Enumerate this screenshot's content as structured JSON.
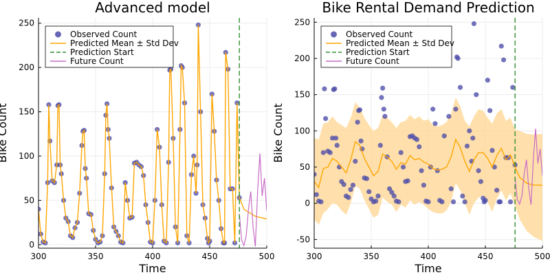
{
  "colors": {
    "observed": "#4b4ba8",
    "predicted": "#ffa500",
    "band": "#ffd690",
    "prediction_start": "#2f8f2f",
    "future": "#c76bc7",
    "grid": "#ececec",
    "axis": "#000000"
  },
  "legend": {
    "observed": "Observed Count",
    "predicted": "Predicted Mean ± Std Dev",
    "prediction_start": "Prediction Start",
    "future": "Future Count",
    "placement": "top-left"
  },
  "chart_data": [
    {
      "type": "line",
      "title": "Advanced model",
      "xlabel": "Time",
      "ylabel": "Bike Count",
      "xlim": [
        300,
        500
      ],
      "ylim": [
        -4,
        256
      ],
      "xticks": [
        300,
        350,
        400,
        450,
        500
      ],
      "yticks": [
        0,
        50,
        100,
        150,
        200,
        250
      ],
      "grid": true,
      "prediction_start": 476,
      "observed": {
        "x": [
          300,
          302,
          304,
          306,
          308,
          309,
          310,
          312,
          314,
          316,
          317,
          318,
          319,
          320,
          322,
          324,
          326,
          328,
          330,
          332,
          334,
          336,
          338,
          339,
          340,
          341,
          342,
          344,
          346,
          348,
          350,
          352,
          354,
          356,
          358,
          359,
          360,
          361,
          362,
          364,
          366,
          368,
          370,
          372,
          374,
          376,
          378,
          380,
          382,
          384,
          386,
          388,
          390,
          392,
          394,
          396,
          398,
          400,
          402,
          404,
          406,
          408,
          410,
          412,
          414,
          415,
          416,
          418,
          420,
          422,
          424,
          425,
          426,
          428,
          430,
          432,
          434,
          436,
          438,
          439,
          440,
          442,
          444,
          446,
          448,
          449,
          450,
          452,
          454,
          456,
          458,
          460,
          462,
          463,
          464,
          466,
          468,
          470,
          472,
          474,
          476
        ],
        "y": [
          40,
          12,
          3,
          2,
          70,
          158,
          117,
          72,
          70,
          90,
          157,
          158,
          90,
          80,
          50,
          30,
          26,
          10,
          8,
          19,
          25,
          58,
          112,
          128,
          129,
          86,
          75,
          35,
          34,
          16,
          6,
          2,
          3,
          10,
          80,
          146,
          159,
          130,
          120,
          64,
          20,
          15,
          10,
          3,
          2,
          70,
          50,
          30,
          31,
          92,
          93,
          90,
          88,
          78,
          45,
          25,
          3,
          2,
          50,
          130,
          110,
          45,
          4,
          2,
          93,
          197,
          198,
          120,
          20,
          2,
          130,
          202,
          200,
          160,
          10,
          2,
          79,
          100,
          58,
          90,
          248,
          150,
          45,
          30,
          7,
          2,
          4,
          170,
          128,
          73,
          50,
          18,
          2,
          2,
          217,
          198,
          63,
          63,
          2,
          160,
          53
        ]
      },
      "predicted_mean": {
        "x": [
          300,
          302,
          304,
          306,
          308,
          309,
          310,
          312,
          314,
          316,
          317,
          318,
          319,
          320,
          322,
          324,
          326,
          328,
          330,
          332,
          334,
          336,
          338,
          339,
          340,
          341,
          342,
          344,
          346,
          348,
          350,
          352,
          354,
          356,
          358,
          359,
          360,
          361,
          362,
          364,
          366,
          368,
          370,
          372,
          374,
          376,
          378,
          380,
          382,
          384,
          386,
          388,
          390,
          392,
          394,
          396,
          398,
          400,
          402,
          404,
          406,
          408,
          410,
          412,
          414,
          415,
          416,
          418,
          420,
          422,
          424,
          425,
          426,
          428,
          430,
          432,
          434,
          436,
          438,
          439,
          440,
          442,
          444,
          446,
          448,
          449,
          450,
          452,
          454,
          456,
          458,
          460,
          462,
          463,
          464,
          466,
          468,
          470,
          472,
          474,
          476,
          480,
          490,
          500
        ],
        "y": [
          40,
          12,
          3,
          2,
          70,
          158,
          117,
          72,
          70,
          90,
          157,
          158,
          90,
          80,
          50,
          30,
          26,
          10,
          8,
          19,
          25,
          58,
          112,
          128,
          129,
          86,
          75,
          35,
          34,
          16,
          6,
          2,
          3,
          10,
          80,
          146,
          159,
          130,
          120,
          64,
          20,
          15,
          10,
          3,
          2,
          70,
          50,
          30,
          31,
          92,
          93,
          90,
          88,
          78,
          45,
          25,
          3,
          2,
          50,
          130,
          110,
          45,
          4,
          2,
          93,
          197,
          198,
          120,
          20,
          2,
          130,
          202,
          200,
          160,
          10,
          2,
          79,
          100,
          58,
          90,
          248,
          150,
          45,
          30,
          7,
          2,
          4,
          170,
          128,
          73,
          50,
          18,
          2,
          2,
          217,
          198,
          63,
          63,
          2,
          160,
          53,
          40,
          32,
          29
        ]
      },
      "future_count": {
        "x": [
          476,
          478,
          480,
          482,
          484,
          486,
          488,
          490,
          492,
          494,
          496,
          498,
          500
        ],
        "y": [
          35,
          5,
          -1,
          10,
          40,
          60,
          20,
          -2,
          60,
          103,
          55,
          75,
          38
        ]
      }
    },
    {
      "type": "line",
      "title": "Bike Rental Demand Prediction",
      "xlabel": "Time",
      "ylabel": "Bike Count",
      "xlim": [
        300,
        500
      ],
      "ylim": [
        -62,
        256
      ],
      "xticks": [
        300,
        350,
        400,
        450,
        500
      ],
      "yticks": [
        -50,
        0,
        50,
        100,
        150,
        200,
        250
      ],
      "grid": true,
      "prediction_start": 476,
      "observed": {
        "x": [
          300,
          302,
          304,
          306,
          308,
          309,
          310,
          312,
          314,
          316,
          317,
          318,
          319,
          320,
          322,
          324,
          326,
          328,
          330,
          332,
          334,
          336,
          338,
          339,
          340,
          341,
          342,
          344,
          346,
          348,
          350,
          352,
          354,
          356,
          358,
          359,
          360,
          361,
          362,
          364,
          366,
          368,
          370,
          372,
          374,
          376,
          378,
          380,
          382,
          384,
          386,
          388,
          390,
          392,
          394,
          396,
          398,
          400,
          402,
          404,
          406,
          408,
          410,
          412,
          414,
          415,
          416,
          418,
          420,
          422,
          424,
          425,
          426,
          428,
          430,
          432,
          434,
          436,
          438,
          439,
          440,
          442,
          444,
          446,
          448,
          449,
          450,
          452,
          454,
          456,
          458,
          460,
          462,
          463,
          464,
          466,
          468,
          470,
          472,
          474,
          476
        ],
        "y": [
          40,
          12,
          3,
          2,
          70,
          158,
          117,
          72,
          70,
          90,
          157,
          158,
          90,
          80,
          50,
          30,
          26,
          10,
          8,
          19,
          25,
          58,
          112,
          128,
          129,
          86,
          75,
          35,
          34,
          16,
          6,
          2,
          3,
          10,
          80,
          146,
          159,
          130,
          120,
          64,
          20,
          15,
          10,
          3,
          2,
          70,
          50,
          30,
          31,
          92,
          93,
          90,
          88,
          78,
          45,
          25,
          3,
          2,
          50,
          130,
          110,
          45,
          4,
          2,
          93,
          197,
          198,
          120,
          20,
          2,
          130,
          202,
          200,
          160,
          10,
          2,
          79,
          100,
          58,
          90,
          248,
          150,
          45,
          30,
          7,
          2,
          4,
          170,
          128,
          73,
          50,
          18,
          2,
          2,
          217,
          198,
          63,
          63,
          2,
          160,
          53
        ]
      },
      "predicted_mean": {
        "x": [
          300,
          304,
          308,
          312,
          316,
          320,
          324,
          328,
          332,
          336,
          340,
          344,
          348,
          352,
          356,
          360,
          364,
          368,
          372,
          376,
          380,
          384,
          388,
          392,
          396,
          400,
          404,
          408,
          412,
          416,
          420,
          424,
          428,
          432,
          436,
          440,
          444,
          448,
          452,
          456,
          460,
          464,
          468,
          472,
          476,
          480,
          486,
          492,
          500
        ],
        "y": [
          30,
          22,
          48,
          50,
          62,
          58,
          50,
          42,
          60,
          85,
          80,
          62,
          50,
          38,
          44,
          68,
          64,
          58,
          47,
          56,
          54,
          66,
          60,
          62,
          57,
          54,
          48,
          46,
          47,
          50,
          64,
          88,
          77,
          58,
          44,
          60,
          70,
          70,
          62,
          50,
          66,
          76,
          60,
          67,
          50,
          36,
          28,
          25,
          25
        ]
      },
      "band_upper": {
        "x": [
          300,
          304,
          308,
          312,
          316,
          320,
          324,
          328,
          332,
          336,
          340,
          344,
          348,
          352,
          356,
          360,
          364,
          368,
          372,
          376,
          380,
          384,
          388,
          392,
          396,
          400,
          404,
          408,
          412,
          416,
          420,
          424,
          428,
          432,
          436,
          440,
          444,
          448,
          452,
          456,
          460,
          464,
          468,
          472,
          476,
          480,
          486,
          492,
          500
        ],
        "y": [
          90,
          88,
          110,
          112,
          120,
          112,
          108,
          104,
          118,
          140,
          132,
          118,
          108,
          100,
          104,
          122,
          118,
          112,
          104,
          112,
          114,
          122,
          116,
          120,
          114,
          116,
          108,
          106,
          108,
          112,
          124,
          146,
          134,
          114,
          106,
          120,
          130,
          128,
          118,
          110,
          124,
          130,
          114,
          118,
          102,
          100,
          96,
          95,
          96
        ]
      },
      "band_lower": {
        "x": [
          300,
          304,
          308,
          312,
          316,
          320,
          324,
          328,
          332,
          336,
          340,
          344,
          348,
          352,
          356,
          360,
          364,
          368,
          372,
          376,
          380,
          384,
          388,
          392,
          396,
          400,
          404,
          408,
          412,
          416,
          420,
          424,
          428,
          432,
          436,
          440,
          444,
          448,
          452,
          456,
          460,
          464,
          468,
          472,
          476,
          480,
          486,
          492,
          500
        ],
        "y": [
          -22,
          -30,
          -14,
          -8,
          0,
          -2,
          -10,
          -16,
          0,
          24,
          20,
          4,
          -8,
          -20,
          -16,
          8,
          2,
          -2,
          -12,
          -2,
          -6,
          4,
          -2,
          2,
          -2,
          -8,
          -12,
          -14,
          -14,
          -10,
          2,
          28,
          18,
          0,
          -16,
          0,
          8,
          10,
          2,
          -12,
          6,
          18,
          4,
          14,
          -4,
          -22,
          -38,
          -46,
          -52
        ]
      },
      "future_count": {
        "x": [
          476,
          478,
          480,
          482,
          484,
          486,
          488,
          490,
          492,
          494,
          496,
          498,
          500
        ],
        "y": [
          35,
          5,
          -1,
          10,
          40,
          60,
          20,
          -2,
          60,
          103,
          55,
          75,
          38
        ]
      }
    }
  ]
}
